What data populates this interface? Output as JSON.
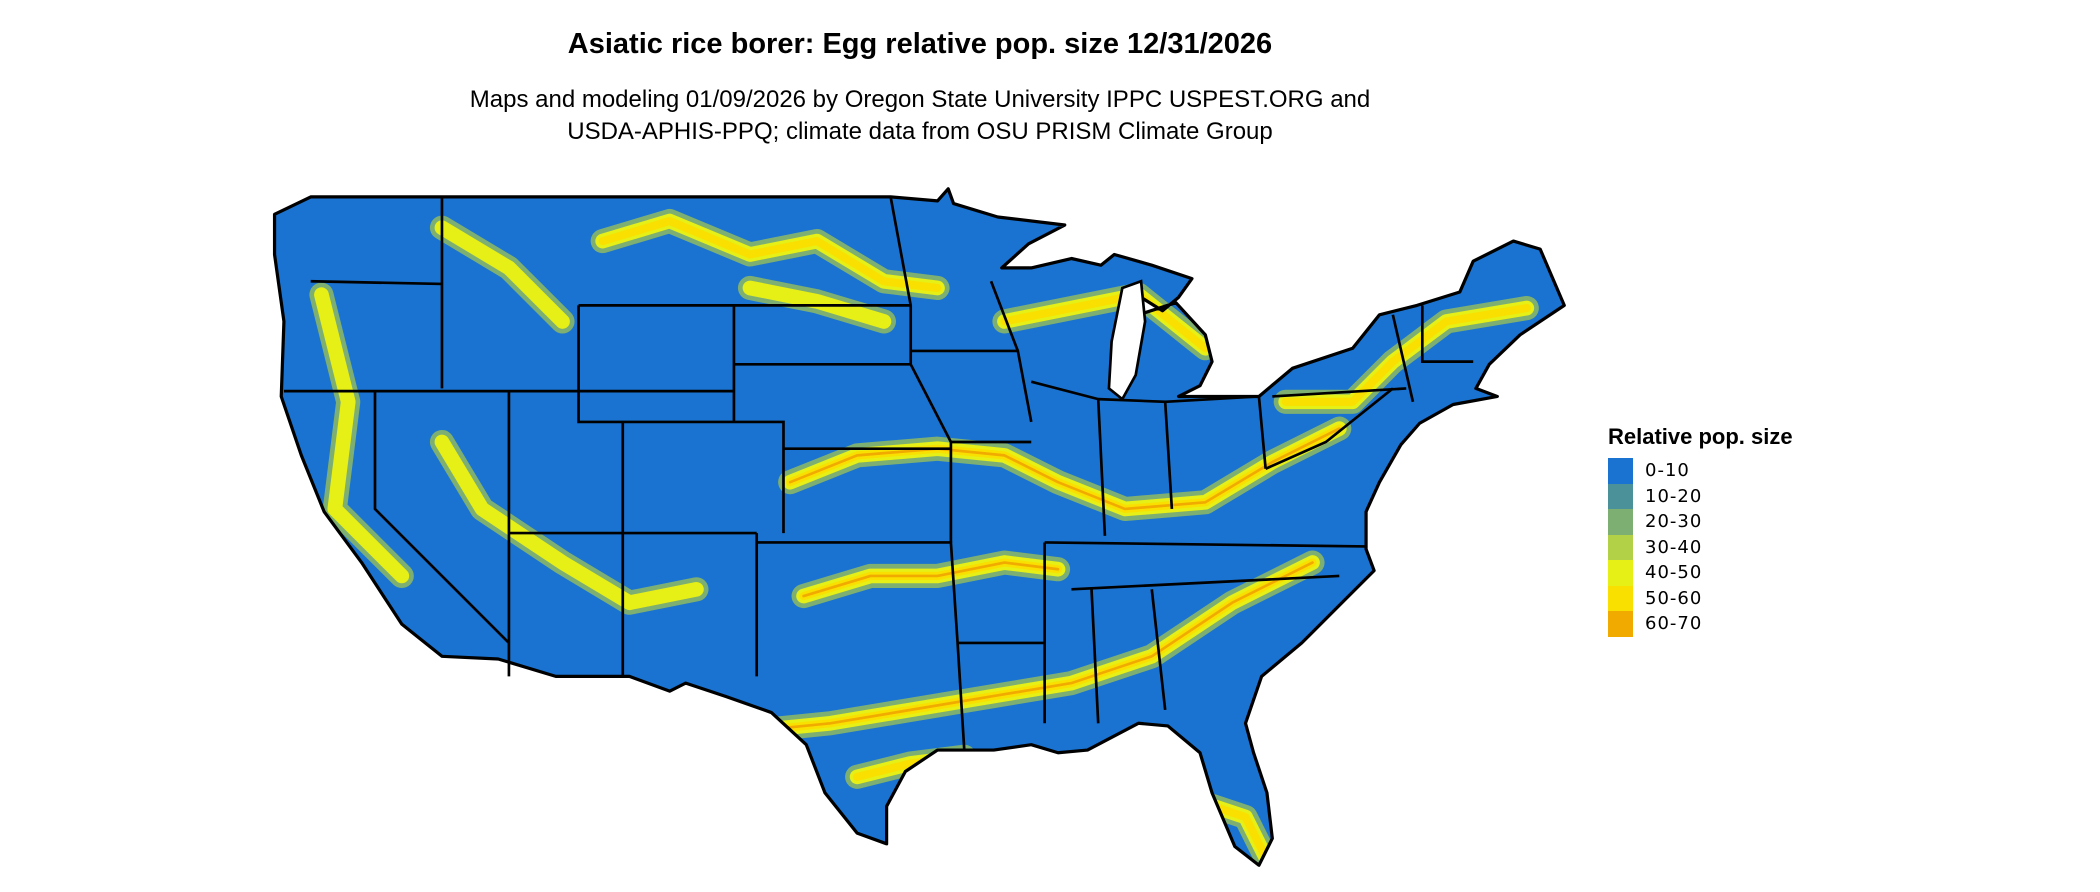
{
  "title": "Asiatic rice borer: Egg relative pop. size 12/31/2026",
  "subtitle_line1": "Maps and modeling 01/09/2026 by Oregon State University IPPC USPEST.ORG and",
  "subtitle_line2": "USDA-APHIS-PPQ; climate data from OSU PRISM Climate Group",
  "map": {
    "region": "Contiguous United States",
    "base_color": "#1a73d0",
    "border_color": "#000000"
  },
  "legend": {
    "title": "Relative pop. size",
    "items": [
      {
        "label": "0-10",
        "color": "#1a73d0"
      },
      {
        "label": "10-20",
        "color": "#4a9199"
      },
      {
        "label": "20-30",
        "color": "#7daf73"
      },
      {
        "label": "30-40",
        "color": "#b2d146"
      },
      {
        "label": "40-50",
        "color": "#e6ef16"
      },
      {
        "label": "50-60",
        "color": "#f9e000"
      },
      {
        "label": "60-70",
        "color": "#f0aa00"
      }
    ]
  }
}
